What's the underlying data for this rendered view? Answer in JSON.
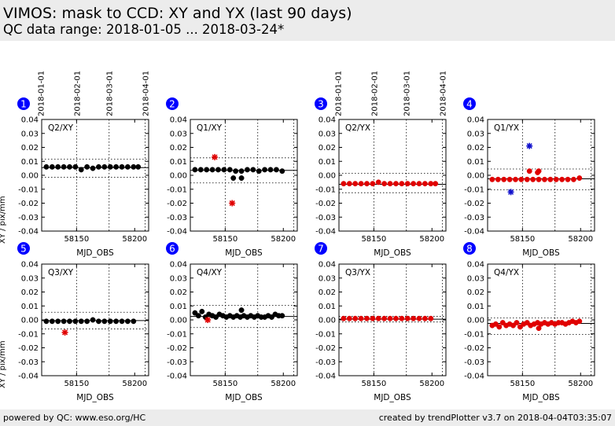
{
  "header": {
    "title": "VIMOS: mask to CCD: XY and YX (last 90 days)",
    "subtitle": "QC data range: 2018-01-05 ... 2018-03-24*"
  },
  "footer": {
    "left": "powered by QC: www.eso.org/HC",
    "right": "created by trendPlotter v3.7 on 2018-04-04T03:35:07"
  },
  "colors": {
    "black_series": "#000000",
    "red_series": "#e00000",
    "blue_outlier": "#1010cc",
    "badge": "#0000ff"
  },
  "chart_data": [
    {
      "type": "scatter",
      "panel": "1",
      "label": "Q2/XY",
      "xlabel": "MJD_OBS",
      "ylabel": "XY / pix/mm",
      "ylim": [
        -0.04,
        0.04
      ],
      "xticks": [
        "58150",
        "58200"
      ],
      "date_ticks": [
        "2018-01-01",
        "2018-02-01",
        "2018-03-01",
        "2018-04-01"
      ],
      "yticks": [
        "0.04",
        "0.03",
        "0.02",
        "0.01",
        "0.00",
        "-0.01",
        "-0.02",
        "-0.03",
        "-0.04"
      ],
      "median": 0.0055,
      "limits": [
        0.0115,
        -0.0015
      ],
      "series": [
        {
          "color": "black",
          "marker": "dot",
          "x": [
            58124,
            58129,
            58134,
            58139,
            58144,
            58149,
            58154,
            58159,
            58164,
            58169,
            58174,
            58179,
            58184,
            58189,
            58194,
            58199,
            58203
          ],
          "y": [
            0.006,
            0.006,
            0.006,
            0.006,
            0.006,
            0.006,
            0.004,
            0.006,
            0.005,
            0.006,
            0.006,
            0.006,
            0.006,
            0.006,
            0.006,
            0.006,
            0.006
          ]
        }
      ]
    },
    {
      "type": "scatter",
      "panel": "2",
      "label": "Q1/XY",
      "xlabel": "MJD_OBS",
      "ylabel": "",
      "ylim": [
        -0.04,
        0.04
      ],
      "xticks": [
        "58150",
        "58200"
      ],
      "date_ticks": [],
      "yticks": [
        "0.04",
        "0.03",
        "0.02",
        "0.01",
        "0.00",
        "-0.01",
        "-0.02",
        "-0.03",
        "-0.04"
      ],
      "median": 0.0035,
      "limits": [
        0.0125,
        -0.0055
      ],
      "series": [
        {
          "color": "black",
          "marker": "dot",
          "x": [
            58124,
            58129,
            58134,
            58139,
            58144,
            58149,
            58154,
            58159,
            58164,
            58169,
            58174,
            58179,
            58184,
            58189,
            58194,
            58199,
            58157,
            58164
          ],
          "y": [
            0.004,
            0.004,
            0.004,
            0.004,
            0.004,
            0.004,
            0.004,
            0.003,
            0.003,
            0.004,
            0.004,
            0.003,
            0.004,
            0.004,
            0.004,
            0.003,
            -0.002,
            -0.002
          ]
        },
        {
          "color": "red",
          "marker": "star",
          "x": [
            58141,
            58156
          ],
          "y": [
            0.013,
            -0.02
          ]
        }
      ]
    },
    {
      "type": "scatter",
      "panel": "3",
      "label": "Q2/YX",
      "xlabel": "MJD_OBS",
      "ylabel": "",
      "ylim": [
        -0.04,
        0.04
      ],
      "xticks": [
        "58150",
        "58200"
      ],
      "date_ticks": [
        "2018-01-01",
        "2018-02-01",
        "2018-03-01",
        "2018-04-01"
      ],
      "yticks": [
        "0.04",
        "0.03",
        "0.02",
        "0.01",
        "0.00",
        "-0.01",
        "-0.02",
        "-0.03",
        "-0.04"
      ],
      "median": -0.0065,
      "limits": [
        0.0015,
        -0.0125
      ],
      "series": [
        {
          "color": "red",
          "marker": "dot",
          "x": [
            58124,
            58129,
            58134,
            58139,
            58144,
            58149,
            58154,
            58159,
            58164,
            58169,
            58174,
            58179,
            58184,
            58189,
            58194,
            58199,
            58203
          ],
          "y": [
            -0.006,
            -0.006,
            -0.006,
            -0.006,
            -0.006,
            -0.006,
            -0.005,
            -0.006,
            -0.006,
            -0.006,
            -0.006,
            -0.006,
            -0.006,
            -0.006,
            -0.006,
            -0.006,
            -0.006
          ]
        }
      ]
    },
    {
      "type": "scatter",
      "panel": "4",
      "label": "Q1/YX",
      "xlabel": "MJD_OBS",
      "ylabel": "",
      "ylim": [
        -0.04,
        0.04
      ],
      "xticks": [
        "58150",
        "58200"
      ],
      "date_ticks": [],
      "yticks": [
        "0.04",
        "0.03",
        "0.02",
        "0.01",
        "0.00",
        "-0.01",
        "-0.02",
        "-0.03",
        "-0.04"
      ],
      "median": -0.0025,
      "limits": [
        0.0045,
        -0.0105
      ],
      "series": [
        {
          "color": "red",
          "marker": "dot",
          "x": [
            58124,
            58129,
            58134,
            58139,
            58144,
            58149,
            58154,
            58159,
            58164,
            58169,
            58174,
            58179,
            58184,
            58189,
            58194,
            58199,
            58156,
            58163,
            58164
          ],
          "y": [
            -0.003,
            -0.003,
            -0.003,
            -0.003,
            -0.003,
            -0.003,
            -0.003,
            -0.003,
            -0.003,
            -0.003,
            -0.003,
            -0.003,
            -0.003,
            -0.003,
            -0.003,
            -0.002,
            0.003,
            0.002,
            0.003
          ]
        },
        {
          "color": "blue",
          "marker": "star",
          "x": [
            58140,
            58156
          ],
          "y": [
            -0.012,
            0.021
          ]
        }
      ]
    },
    {
      "type": "scatter",
      "panel": "5",
      "label": "Q3/XY",
      "xlabel": "MJD_OBS",
      "ylabel": "XY / pix/mm",
      "ylim": [
        -0.04,
        0.04
      ],
      "xticks": [
        "58150",
        "58200"
      ],
      "date_ticks": [],
      "yticks": [
        "0.04",
        "0.03",
        "0.02",
        "0.01",
        "0.00",
        "-0.01",
        "-0.02",
        "-0.03",
        "-0.04"
      ],
      "median": -0.0005,
      "limits": [
        0.0055,
        -0.0065
      ],
      "series": [
        {
          "color": "black",
          "marker": "dot",
          "x": [
            58124,
            58129,
            58134,
            58139,
            58144,
            58149,
            58154,
            58159,
            58164,
            58169,
            58174,
            58179,
            58184,
            58189,
            58194,
            58199
          ],
          "y": [
            -0.001,
            -0.001,
            -0.001,
            -0.001,
            -0.001,
            -0.001,
            -0.001,
            -0.001,
            0.0,
            -0.001,
            -0.001,
            -0.001,
            -0.001,
            -0.001,
            -0.001,
            -0.001
          ]
        },
        {
          "color": "red",
          "marker": "star",
          "x": [
            58140
          ],
          "y": [
            -0.009
          ]
        }
      ]
    },
    {
      "type": "scatter",
      "panel": "6",
      "label": "Q4/XY",
      "xlabel": "MJD_OBS",
      "ylabel": "",
      "ylim": [
        -0.04,
        0.04
      ],
      "xticks": [
        "58150",
        "58200"
      ],
      "date_ticks": [],
      "yticks": [
        "0.04",
        "0.03",
        "0.02",
        "0.01",
        "0.00",
        "-0.01",
        "-0.02",
        "-0.03",
        "-0.04"
      ],
      "median": 0.0025,
      "limits": [
        0.0105,
        -0.0055
      ],
      "series": [
        {
          "color": "black",
          "marker": "dot",
          "x": [
            58124,
            58127,
            58130,
            58133,
            58136,
            58139,
            58142,
            58145,
            58148,
            58151,
            58154,
            58157,
            58160,
            58163,
            58166,
            58169,
            58172,
            58175,
            58178,
            58181,
            58184,
            58187,
            58190,
            58193,
            58196,
            58199,
            58164
          ],
          "y": [
            0.005,
            0.003,
            0.006,
            0.002,
            0.004,
            0.003,
            0.002,
            0.004,
            0.003,
            0.002,
            0.003,
            0.002,
            0.003,
            0.002,
            0.003,
            0.002,
            0.003,
            0.002,
            0.003,
            0.002,
            0.002,
            0.003,
            0.002,
            0.004,
            0.003,
            0.003,
            0.007
          ]
        },
        {
          "color": "red",
          "marker": "star",
          "x": [
            58135
          ],
          "y": [
            0.0
          ]
        }
      ]
    },
    {
      "type": "scatter",
      "panel": "7",
      "label": "Q3/YX",
      "xlabel": "MJD_OBS",
      "ylabel": "",
      "ylim": [
        -0.04,
        0.04
      ],
      "xticks": [
        "58150",
        "58200"
      ],
      "date_ticks": [],
      "yticks": [
        "0.04",
        "0.03",
        "0.02",
        "0.01",
        "0.00",
        "-0.01",
        "-0.02",
        "-0.03",
        "-0.04"
      ],
      "median": 0.0005,
      "limits": [
        0.0025,
        -0.0015
      ],
      "series": [
        {
          "color": "red",
          "marker": "dot",
          "x": [
            58124,
            58129,
            58134,
            58139,
            58144,
            58149,
            58154,
            58159,
            58164,
            58169,
            58174,
            58179,
            58184,
            58189,
            58194,
            58199
          ],
          "y": [
            0.001,
            0.001,
            0.001,
            0.001,
            0.001,
            0.001,
            0.001,
            0.001,
            0.001,
            0.001,
            0.001,
            0.001,
            0.001,
            0.001,
            0.001,
            0.001
          ]
        }
      ]
    },
    {
      "type": "scatter",
      "panel": "8",
      "label": "Q4/YX",
      "xlabel": "MJD_OBS",
      "ylabel": "",
      "ylim": [
        -0.04,
        0.04
      ],
      "xticks": [
        "58150",
        "58200"
      ],
      "date_ticks": [],
      "yticks": [
        "0.04",
        "0.03",
        "0.02",
        "0.01",
        "0.00",
        "-0.01",
        "-0.02",
        "-0.03",
        "-0.04"
      ],
      "median": -0.0025,
      "limits": [
        0.0015,
        -0.0105
      ],
      "series": [
        {
          "color": "red",
          "marker": "dot",
          "x": [
            58124,
            58127,
            58130,
            58133,
            58136,
            58139,
            58142,
            58145,
            58148,
            58151,
            58154,
            58157,
            58160,
            58163,
            58166,
            58169,
            58172,
            58175,
            58178,
            58181,
            58184,
            58187,
            58190,
            58193,
            58196,
            58199,
            58164
          ],
          "y": [
            -0.004,
            -0.003,
            -0.005,
            -0.002,
            -0.004,
            -0.003,
            -0.004,
            -0.002,
            -0.005,
            -0.003,
            -0.002,
            -0.004,
            -0.003,
            -0.002,
            -0.003,
            -0.002,
            -0.003,
            -0.002,
            -0.003,
            -0.002,
            -0.002,
            -0.003,
            -0.002,
            -0.001,
            -0.002,
            -0.001,
            -0.006
          ]
        }
      ]
    }
  ]
}
